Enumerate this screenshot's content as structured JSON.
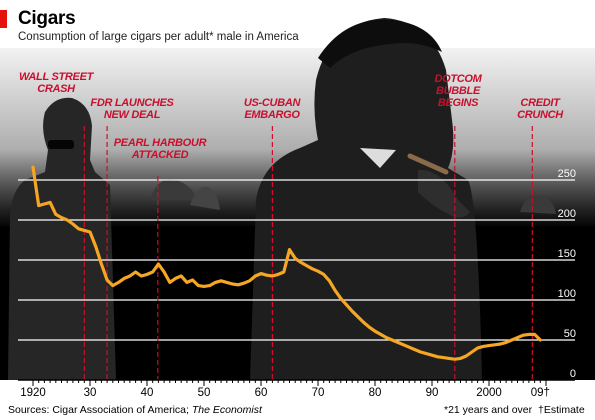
{
  "header": {
    "title": "Cigars",
    "subtitle": "Consumption of large cigars per adult* male in America"
  },
  "footer": {
    "source_prefix": "Sources: Cigar Association of America; ",
    "source_italic": "The Economist",
    "footnote_adult": "*21 years and over",
    "footnote_estimate": "†Estimate"
  },
  "colors": {
    "line": "#f5a623",
    "event": "#c8102e",
    "accent": "#e3120b",
    "photo": "#1e1e1e",
    "plot_bg": "#000000"
  },
  "chart_data": {
    "type": "line",
    "title": "Cigars",
    "subtitle": "Consumption of large cigars per adult* male in America",
    "xlim": [
      1920,
      2010
    ],
    "ylim": [
      0,
      250
    ],
    "grid": true,
    "x_ticks": [
      {
        "value": 1920,
        "label": "1920"
      },
      {
        "value": 1930,
        "label": "30"
      },
      {
        "value": 1940,
        "label": "40"
      },
      {
        "value": 1950,
        "label": "50"
      },
      {
        "value": 1960,
        "label": "60"
      },
      {
        "value": 1970,
        "label": "70"
      },
      {
        "value": 1980,
        "label": "80"
      },
      {
        "value": 1990,
        "label": "90"
      },
      {
        "value": 2000,
        "label": "2000"
      },
      {
        "value": 2009,
        "label": "09†"
      }
    ],
    "y_ticks": [
      0,
      50,
      100,
      150,
      200,
      250
    ],
    "series": [
      {
        "x": [
          1920,
          1921,
          1922,
          1923,
          1924,
          1925,
          1926,
          1927,
          1928,
          1929,
          1930,
          1931,
          1932,
          1933,
          1934,
          1935,
          1936,
          1937,
          1938,
          1939,
          1940,
          1941,
          1942,
          1943,
          1944,
          1945,
          1946,
          1947,
          1948,
          1949,
          1950,
          1951,
          1952,
          1953,
          1954,
          1955,
          1956,
          1957,
          1958,
          1959,
          1960,
          1961,
          1962,
          1963,
          1964,
          1965,
          1966,
          1967,
          1968,
          1969,
          1970,
          1971,
          1972,
          1973,
          1974,
          1975,
          1976,
          1977,
          1978,
          1979,
          1980,
          1981,
          1982,
          1983,
          1984,
          1985,
          1986,
          1987,
          1988,
          1989,
          1990,
          1991,
          1992,
          1993,
          1994,
          1995,
          1996,
          1997,
          1998,
          1999,
          2000,
          2001,
          2002,
          2003,
          2004,
          2005,
          2006,
          2007,
          2008,
          2009
        ],
        "values": [
          266,
          218,
          220,
          222,
          207,
          203,
          200,
          195,
          189,
          187,
          185,
          167,
          145,
          125,
          118,
          122,
          127,
          130,
          135,
          130,
          132,
          135,
          145,
          135,
          122,
          127,
          130,
          122,
          125,
          118,
          117,
          118,
          122,
          124,
          122,
          120,
          119,
          121,
          124,
          130,
          133,
          131,
          130,
          132,
          135,
          163,
          152,
          147,
          143,
          139,
          136,
          132,
          124,
          112,
          102,
          94,
          86,
          79,
          72,
          66,
          61,
          57,
          53,
          50,
          47,
          44,
          41,
          38,
          35,
          33,
          31,
          29,
          28,
          27,
          26,
          27,
          30,
          35,
          40,
          42,
          43,
          44,
          45,
          47,
          50,
          53,
          56,
          57,
          57,
          50
        ]
      }
    ],
    "annotations": [
      {
        "x": 1929,
        "text": "WALL STREET CRASH"
      },
      {
        "x": 1933,
        "text": "FDR LAUNCHES NEW DEAL"
      },
      {
        "x": 1941.9,
        "text": "PEARL HARBOUR ATTACKED"
      },
      {
        "x": 1962,
        "text": "US-CUBAN EMBARGO"
      },
      {
        "x": 1994,
        "text": "DOTCOM BUBBLE BEGINS"
      },
      {
        "x": 2007.6,
        "text": "CREDIT CRUNCH"
      }
    ]
  }
}
